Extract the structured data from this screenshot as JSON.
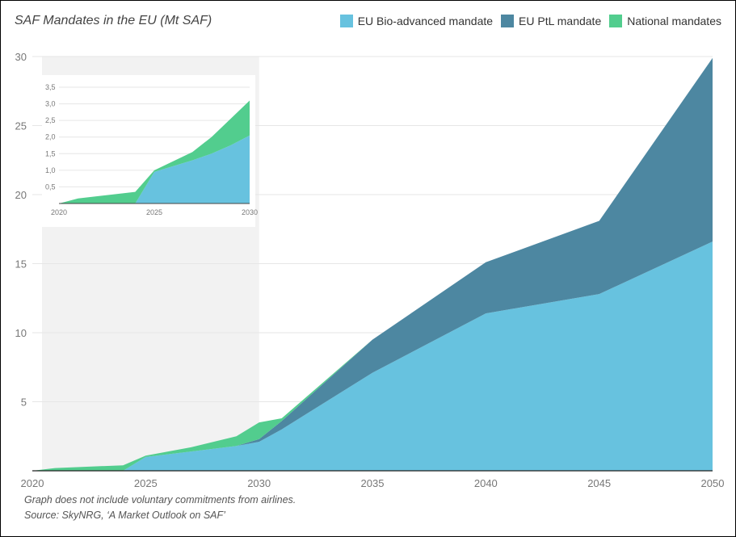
{
  "chart_data": [
    {
      "type": "area",
      "stacked": true,
      "title": "SAF Mandates in the EU (Mt SAF)",
      "xlim": [
        2020,
        2050
      ],
      "ylim": [
        0,
        30
      ],
      "x_ticks": [
        "2020",
        "2025",
        "2030",
        "2035",
        "2040",
        "2045",
        "2050"
      ],
      "y_ticks": [
        "5",
        "10",
        "15",
        "20",
        "25",
        "30"
      ],
      "grid": true,
      "legend": "top-right",
      "x": [
        2020,
        2021,
        2024,
        2025,
        2027,
        2029,
        2030,
        2031,
        2035,
        2040,
        2045,
        2050
      ],
      "series": [
        {
          "name": "EU Bio-advanced mandate",
          "color": "#67c2df",
          "values": [
            0,
            0,
            0,
            1.0,
            1.4,
            1.8,
            2.1,
            3.0,
            7.1,
            11.4,
            12.8,
            16.6
          ]
        },
        {
          "name": "EU PtL mandate",
          "color": "#4d87a1",
          "values": [
            0,
            0,
            0,
            0,
            0,
            0,
            0.2,
            0.6,
            2.4,
            3.7,
            5.3,
            13.3
          ]
        },
        {
          "name": "National mandates",
          "color": "#52cd8e",
          "values": [
            0,
            0.2,
            0.4,
            0.1,
            0.3,
            0.7,
            1.2,
            0.2,
            0,
            0,
            0,
            0
          ]
        }
      ]
    },
    {
      "type": "area",
      "stacked": true,
      "title": "",
      "xlim": [
        2020,
        2030
      ],
      "ylim": [
        0,
        3.5
      ],
      "x_ticks": [
        "2020",
        "2025",
        "2030"
      ],
      "y_ticks": [
        "0,5",
        "1,0",
        "1,5",
        "2,0",
        "2,5",
        "3,0",
        "3,5"
      ],
      "x": [
        2020,
        2021,
        2024,
        2025,
        2027,
        2028,
        2029,
        2030
      ],
      "series": [
        {
          "name": "EU Bio-advanced mandate",
          "color": "#67c2df",
          "values": [
            0,
            0,
            0,
            0.95,
            1.3,
            1.5,
            1.75,
            2.05
          ]
        },
        {
          "name": "National mandates",
          "color": "#52cd8e",
          "values": [
            0,
            0.15,
            0.35,
            0.05,
            0.25,
            0.5,
            0.8,
            1.05
          ]
        }
      ]
    }
  ],
  "notes": {
    "line1": "Graph does not include voluntary commitments from airlines.",
    "line2": "Source:  SkyNRG, ‘A Market Outlook on SAF’"
  }
}
